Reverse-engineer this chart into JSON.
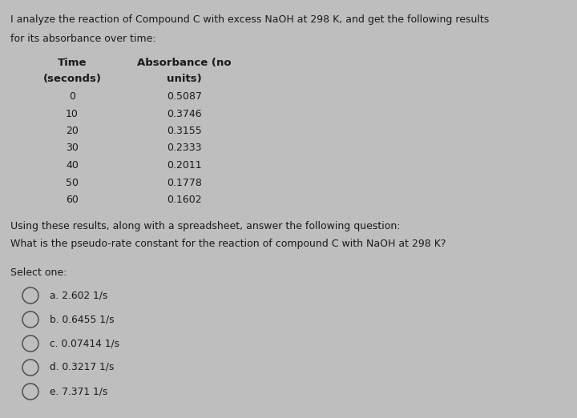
{
  "background_color": "#bebebe",
  "intro_text_line1": "I analyze the reaction of Compound C with excess NaOH at 298 K, and get the following results",
  "intro_text_line2": "for its absorbance over time:",
  "col1_header_line1": "Time",
  "col1_header_line2": "(seconds)",
  "col2_header_line1": "Absorbance (no",
  "col2_header_line2": "units)",
  "time_values": [
    "0",
    "10",
    "20",
    "30",
    "40",
    "50",
    "60"
  ],
  "absorbance_values": [
    "0.5087",
    "0.3746",
    "0.3155",
    "0.2333",
    "0.2011",
    "0.1778",
    "0.1602"
  ],
  "middle_text_line1": "Using these results, along with a spreadsheet, answer the following question:",
  "middle_text_line2": "What is the pseudo-rate constant for the reaction of compound C with NaOH at 298 K?",
  "select_one_label": "Select one:",
  "options": [
    "a. 2.602 1/s",
    "b. 0.6455 1/s",
    "c. 0.07414 1/s",
    "d. 0.3217 1/s",
    "e. 7.371 1/s"
  ],
  "text_color": "#1a1a1a",
  "header_font_size": 9.5,
  "body_font_size": 9.0,
  "intro_font_size": 9.0,
  "option_font_size": 8.8,
  "select_font_size": 9.0
}
